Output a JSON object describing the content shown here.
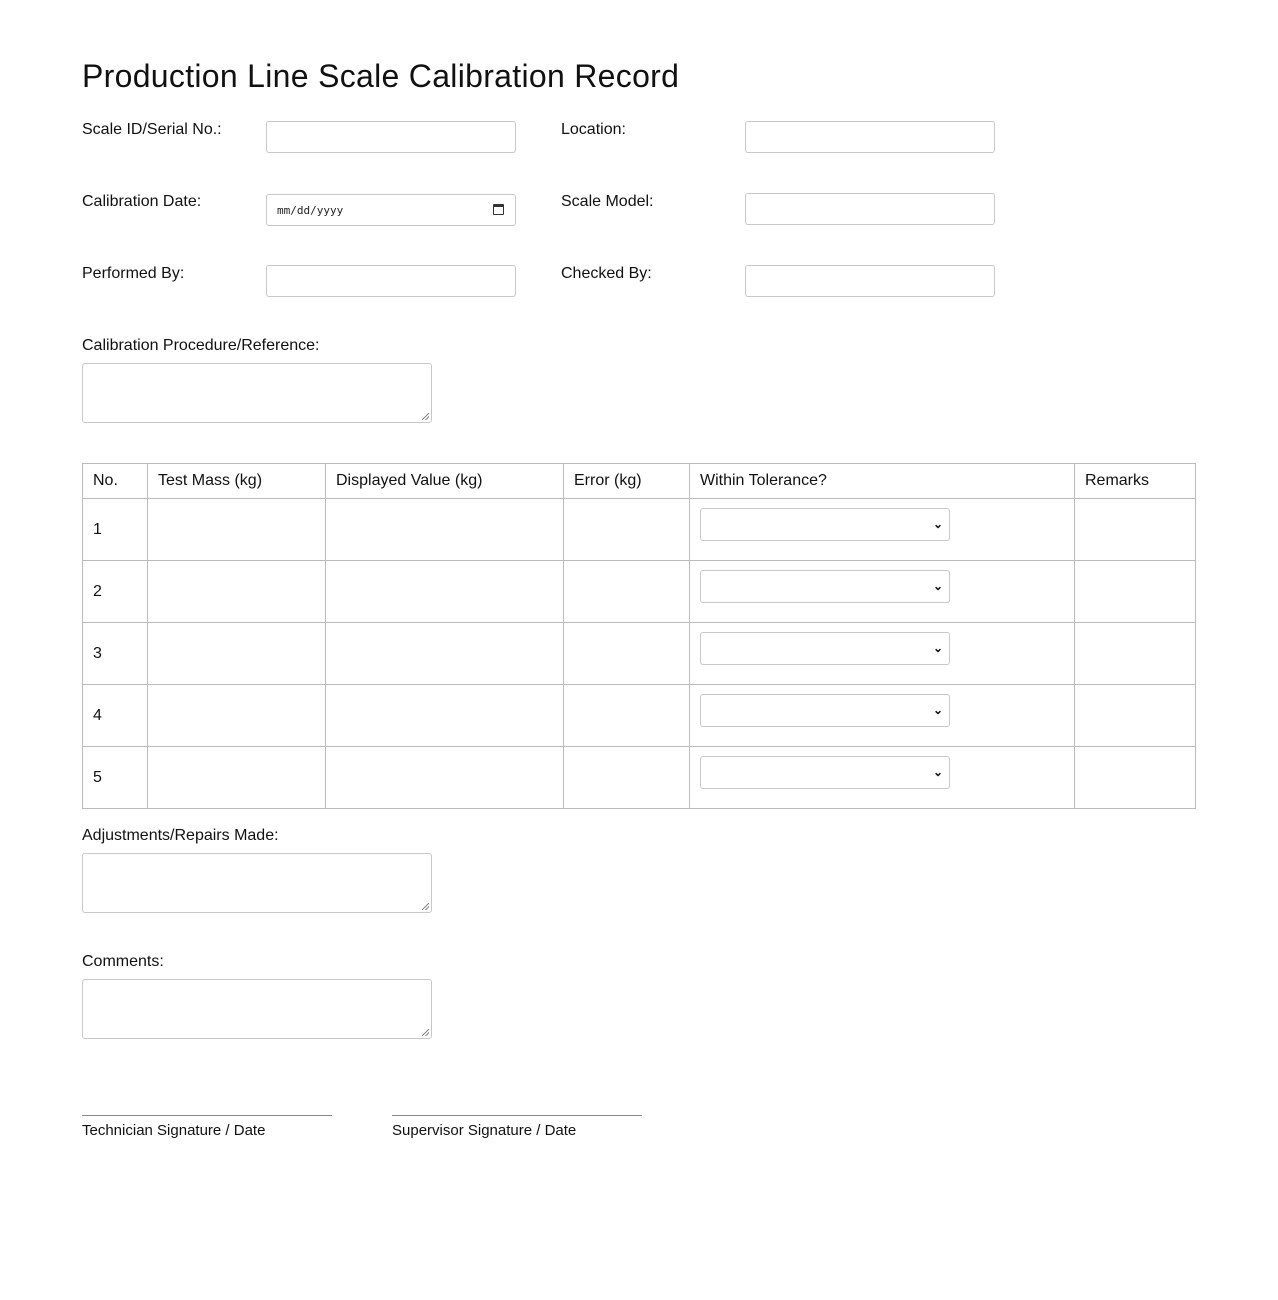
{
  "title": "Production Line Scale Calibration Record",
  "fields": {
    "scale_id": {
      "label": "Scale ID/Serial No.:",
      "value": ""
    },
    "location": {
      "label": "Location:",
      "value": ""
    },
    "calibration_date": {
      "label": "Calibration Date:",
      "placeholder": "mm/dd/yyyy"
    },
    "scale_model": {
      "label": "Scale Model:",
      "value": ""
    },
    "performed_by": {
      "label": "Performed By:",
      "value": ""
    },
    "checked_by": {
      "label": "Checked By:",
      "value": ""
    },
    "procedure": {
      "label": "Calibration Procedure/Reference:",
      "value": ""
    },
    "adjustments": {
      "label": "Adjustments/Repairs Made:",
      "value": ""
    },
    "comments": {
      "label": "Comments:",
      "value": ""
    }
  },
  "table": {
    "headers": [
      "No.",
      "Test Mass (kg)",
      "Displayed Value (kg)",
      "Error (kg)",
      "Within Tolerance?",
      "Remarks"
    ],
    "rows": [
      {
        "no": "1",
        "test_mass": "",
        "displayed": "",
        "error": "",
        "tolerance": "",
        "remarks": ""
      },
      {
        "no": "2",
        "test_mass": "",
        "displayed": "",
        "error": "",
        "tolerance": "",
        "remarks": ""
      },
      {
        "no": "3",
        "test_mass": "",
        "displayed": "",
        "error": "",
        "tolerance": "",
        "remarks": ""
      },
      {
        "no": "4",
        "test_mass": "",
        "displayed": "",
        "error": "",
        "tolerance": "",
        "remarks": ""
      },
      {
        "no": "5",
        "test_mass": "",
        "displayed": "",
        "error": "",
        "tolerance": "",
        "remarks": ""
      }
    ]
  },
  "signatures": {
    "technician": "Technician Signature / Date",
    "supervisor": "Supervisor Signature / Date"
  },
  "icons": {
    "date": "calendar-icon",
    "select": "chevron-down-icon"
  }
}
